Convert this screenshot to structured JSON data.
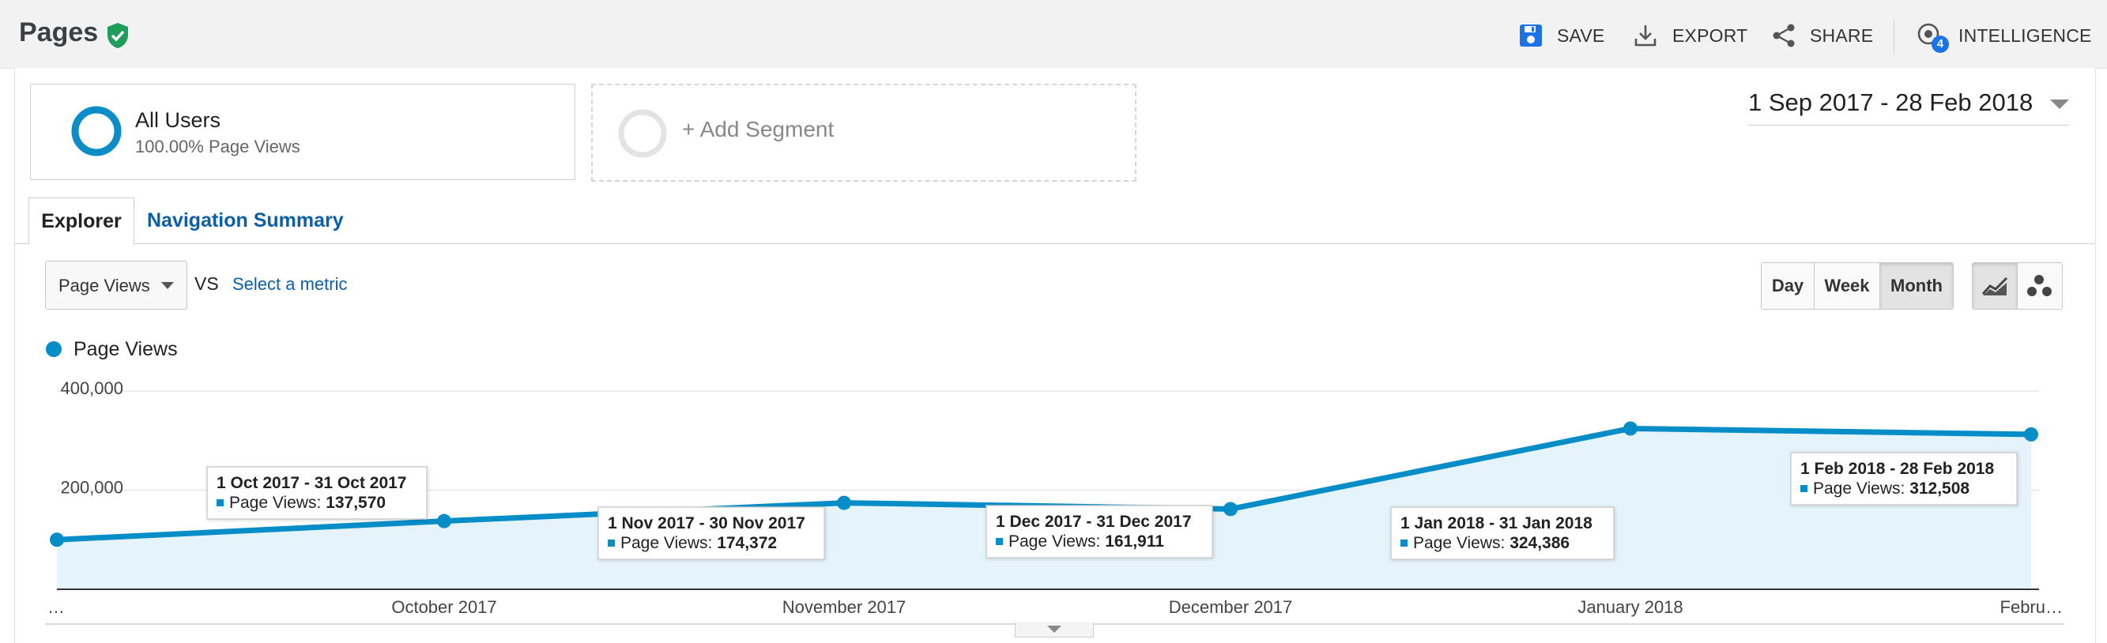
{
  "header": {
    "title": "Pages",
    "actions": [
      {
        "label": "SAVE",
        "icon": "save-icon"
      },
      {
        "label": "EXPORT",
        "icon": "export-icon"
      },
      {
        "label": "SHARE",
        "icon": "share-icon"
      },
      {
        "label": "INTELLIGENCE",
        "icon": "intelligence-icon",
        "badge": "4"
      }
    ]
  },
  "segments": {
    "active": {
      "name": "All Users",
      "sub": "100.00% Page Views"
    },
    "add_label": "+ Add Segment"
  },
  "date_range": "1 Sep 2017 - 28 Feb 2018",
  "tabs": [
    {
      "label": "Explorer",
      "active": true
    },
    {
      "label": "Navigation Summary",
      "active": false
    }
  ],
  "metric": {
    "selected": "Page Views",
    "vs": "VS",
    "select_link": "Select a metric"
  },
  "granularity": [
    "Day",
    "Week",
    "Month"
  ],
  "granularity_active": "Month",
  "legend": {
    "label": "Page Views",
    "color": "#058dc7"
  },
  "chart_data": {
    "type": "area",
    "y_ticks": [
      "400,000",
      "200,000"
    ],
    "ylim": [
      0,
      400000
    ],
    "x_labels": [
      "…",
      "October 2017",
      "November 2017",
      "December 2017",
      "January 2018",
      "Febru…"
    ],
    "series": [
      {
        "name": "Page Views",
        "color": "#058dc7",
        "values": [
          100000,
          137570,
          174372,
          161911,
          324386,
          312508
        ]
      }
    ],
    "tooltips": [
      {
        "title": "1 Oct 2017 - 31 Oct 2017",
        "label": "Page Views: ",
        "value": "137,570"
      },
      {
        "title": "1 Nov 2017 - 30 Nov 2017",
        "label": "Page Views: ",
        "value": "174,372"
      },
      {
        "title": "1 Dec 2017 - 31 Dec 2017",
        "label": "Page Views: ",
        "value": "161,911"
      },
      {
        "title": "1 Jan 2018 - 31 Jan 2018",
        "label": "Page Views: ",
        "value": "324,386"
      },
      {
        "title": "1 Feb 2018 - 28 Feb 2018",
        "label": "Page Views: ",
        "value": "312,508"
      }
    ]
  }
}
